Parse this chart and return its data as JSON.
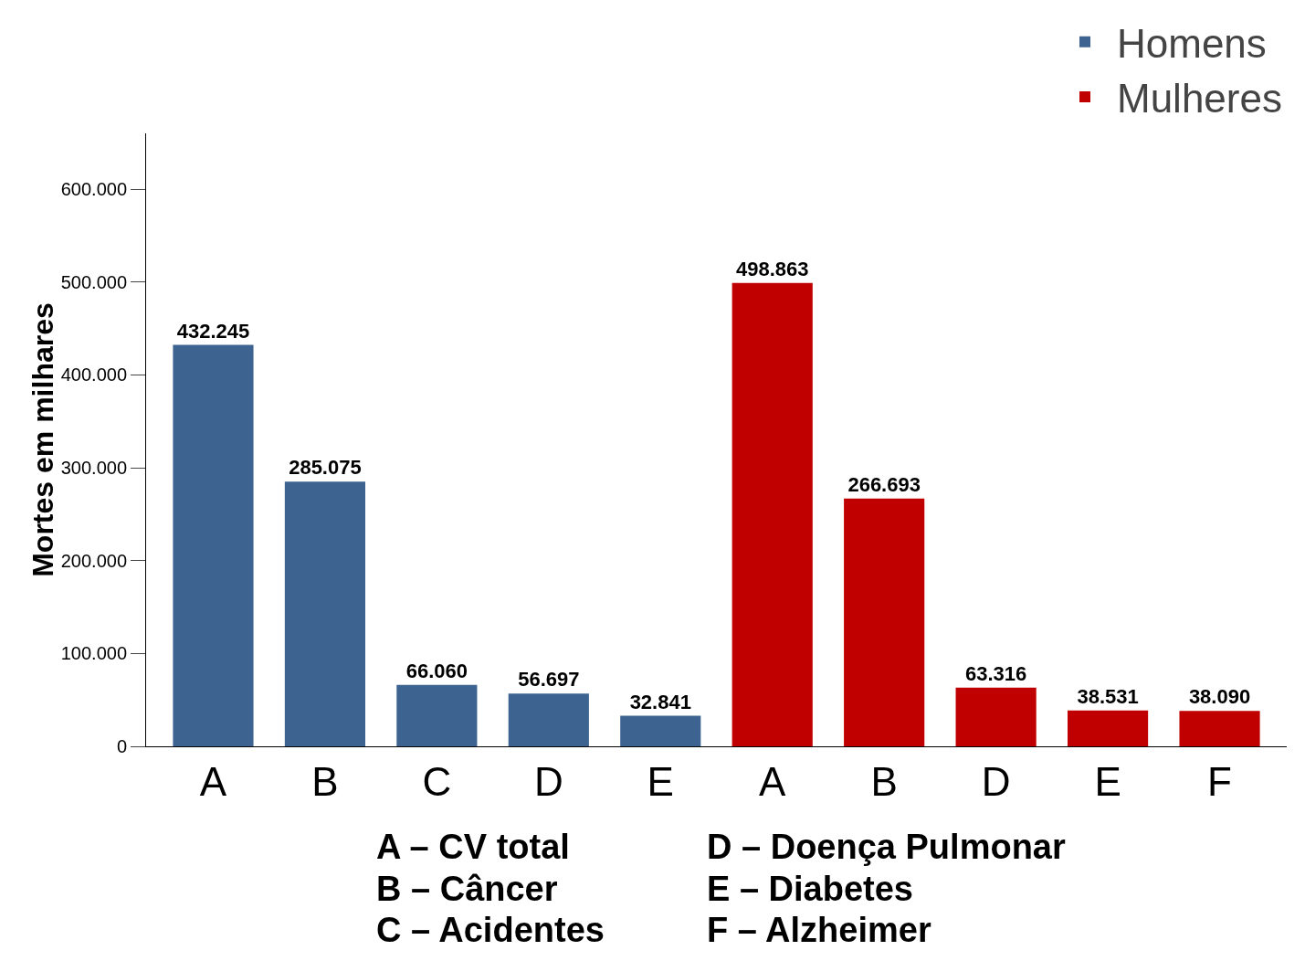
{
  "chart_data": {
    "type": "bar",
    "ylabel": "Mortes em milhares",
    "categories": [
      "A",
      "B",
      "C",
      "D",
      "E",
      "A",
      "B",
      "D",
      "E",
      "F"
    ],
    "series": [
      {
        "name": "Homens",
        "color": "#3d6491",
        "values": [
          432245,
          285075,
          66060,
          56697,
          32841,
          null,
          null,
          null,
          null,
          null
        ],
        "value_labels": [
          "432.245",
          "285.075",
          "66.060",
          "56.697",
          "32.841",
          null,
          null,
          null,
          null,
          null
        ]
      },
      {
        "name": "Mulheres",
        "color": "#c00000",
        "values": [
          null,
          null,
          null,
          null,
          null,
          498863,
          266693,
          63316,
          38531,
          38090
        ],
        "value_labels": [
          null,
          null,
          null,
          null,
          null,
          "498.863",
          "266.693",
          "63.316",
          "38.531",
          "38.090"
        ]
      }
    ],
    "ylim": [
      0,
      660000
    ],
    "yticks": [
      {
        "value": 0,
        "label": "0"
      },
      {
        "value": 100000,
        "label": "100.000"
      },
      {
        "value": 200000,
        "label": "200.000"
      },
      {
        "value": 300000,
        "label": "300.000"
      },
      {
        "value": 400000,
        "label": "400.000"
      },
      {
        "value": 500000,
        "label": "500.000"
      },
      {
        "value": 600000,
        "label": "600.000"
      }
    ],
    "grid": false,
    "legend": "top right",
    "annotations": [
      "A – CV total",
      "B – Câncer",
      "C – Acidentes",
      "D – Doença Pulmonar",
      "E – Diabetes",
      "F – Alzheimer"
    ]
  }
}
